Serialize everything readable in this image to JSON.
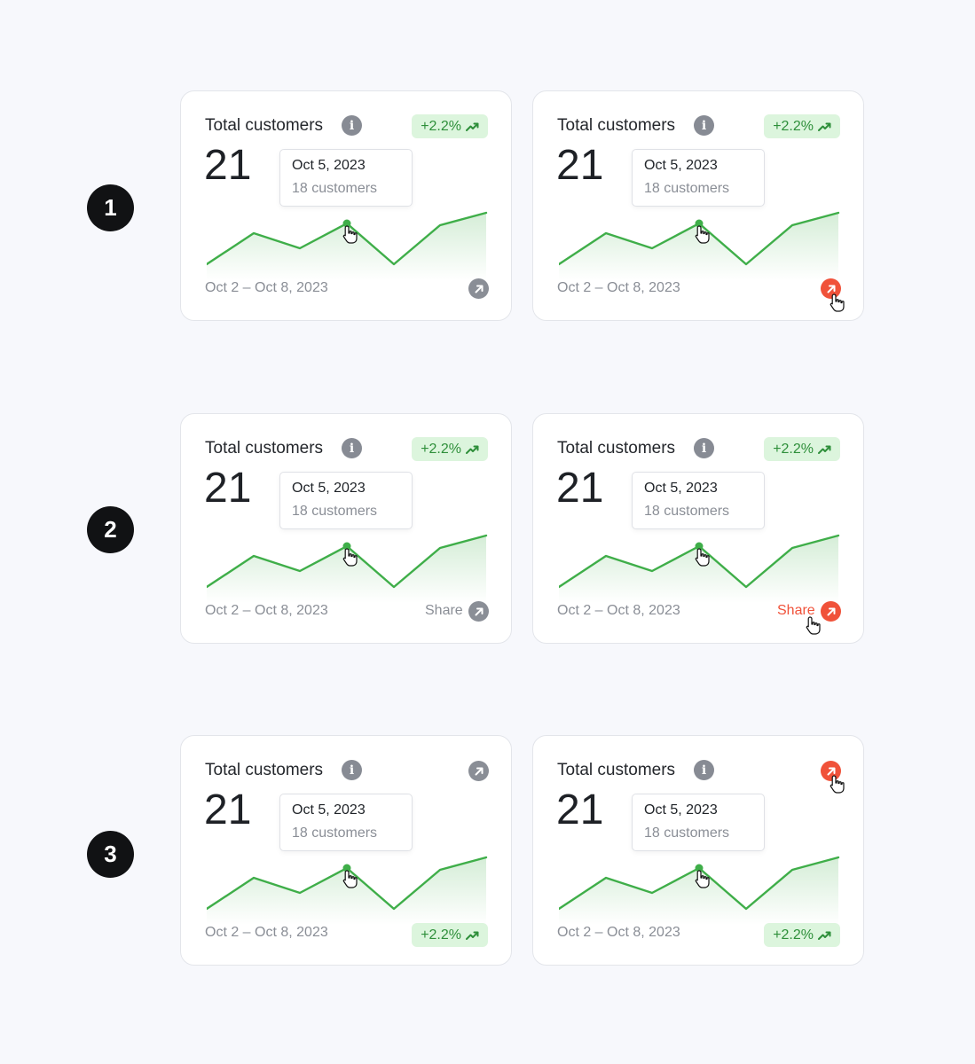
{
  "steps": [
    "1",
    "2",
    "3"
  ],
  "card": {
    "title": "Total customers",
    "value": "21",
    "change": "+2.2%",
    "tooltip_date": "Oct 5, 2023",
    "tooltip_count": "18 customers",
    "date_range": "Oct 2 – Oct 8, 2023",
    "share_label": "Share"
  },
  "icons": {
    "info": "info-icon",
    "share": "arrow-up-right-icon",
    "trend": "trend-up-icon",
    "cursor": "hand-pointer-icon"
  },
  "colors": {
    "accent_green": "#3fae49",
    "badge_bg": "#dcf5dd",
    "hover_red": "#f0523a",
    "muted": "#8a8e96"
  }
}
